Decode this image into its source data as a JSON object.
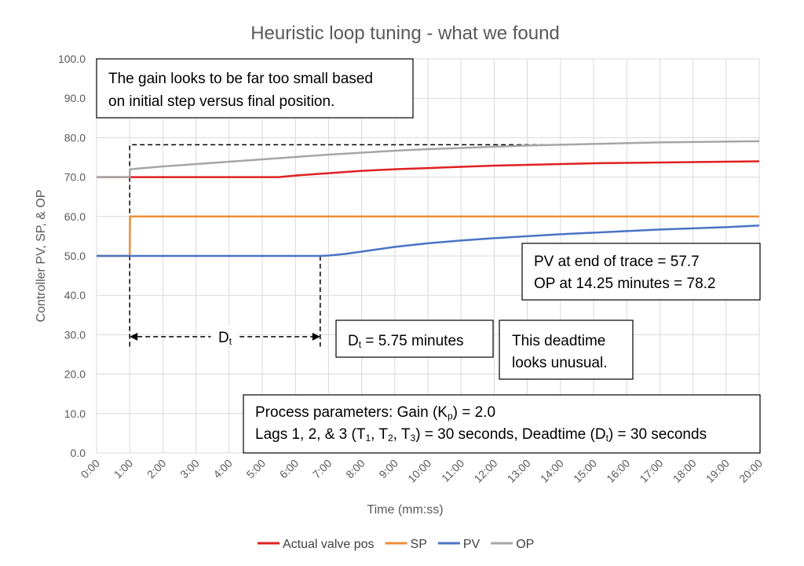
{
  "chart_data": {
    "type": "line",
    "title": "Heuristic loop tuning - what we found",
    "xlabel": "Time (mm:ss)",
    "ylabel": "Controller PV, SP, & OP",
    "xlim": [
      0,
      20
    ],
    "ylim": [
      0,
      100
    ],
    "x_ticks": [
      "0:00",
      "1:00",
      "2:00",
      "3:00",
      "4:00",
      "5:00",
      "6:00",
      "7:00",
      "8:00",
      "9:00",
      "10:00",
      "11:00",
      "12:00",
      "13:00",
      "14:00",
      "15:00",
      "16:00",
      "17:00",
      "18:00",
      "19:00",
      "20:00"
    ],
    "y_ticks": [
      "0.0",
      "10.0",
      "20.0",
      "30.0",
      "40.0",
      "50.0",
      "60.0",
      "70.0",
      "80.0",
      "90.0",
      "100.0"
    ],
    "grid": true,
    "legend_position": "bottom",
    "series": [
      {
        "name": "Actual valve pos",
        "color": "#e02020",
        "x": [
          0,
          1,
          1.01,
          2,
          3,
          4,
          5,
          5.5,
          6,
          7,
          8,
          9,
          10,
          11,
          12,
          13,
          14,
          15,
          16,
          17,
          18,
          19,
          20
        ],
        "y": [
          70,
          70,
          70,
          70,
          70,
          70,
          70,
          70,
          70.4,
          71,
          71.6,
          72,
          72.3,
          72.6,
          72.9,
          73.1,
          73.3,
          73.5,
          73.6,
          73.7,
          73.8,
          73.9,
          74
        ]
      },
      {
        "name": "SP",
        "color": "#ed8e3a",
        "x": [
          0,
          1,
          1.01,
          20
        ],
        "y": [
          50,
          50,
          60,
          60
        ]
      },
      {
        "name": "PV",
        "color": "#4a74c4",
        "x": [
          0,
          1,
          6.75,
          7,
          7.5,
          8,
          8.5,
          9,
          10,
          11,
          12,
          13,
          14,
          15,
          16,
          17,
          18,
          19,
          20
        ],
        "y": [
          50,
          50,
          50,
          50.1,
          50.5,
          51.1,
          51.7,
          52.3,
          53.2,
          53.9,
          54.5,
          55,
          55.5,
          55.9,
          56.3,
          56.7,
          57,
          57.3,
          57.7
        ]
      },
      {
        "name": "OP",
        "color": "#a6a6a6",
        "x": [
          0,
          1,
          1.01,
          2,
          3,
          4,
          5,
          6,
          7,
          8,
          9,
          10,
          11,
          12,
          13,
          14,
          15,
          16,
          17,
          18,
          19,
          20
        ],
        "y": [
          70,
          70,
          72,
          72.7,
          73.3,
          73.9,
          74.5,
          75.1,
          75.7,
          76.2,
          76.7,
          77.1,
          77.4,
          77.7,
          78,
          78.2,
          78.4,
          78.6,
          78.8,
          78.9,
          79,
          79.1
        ]
      }
    ],
    "annotations": {
      "gain_note": [
        "The gain looks to be far too small based",
        "on initial step versus final position."
      ],
      "pv_op_note": [
        "PV at end of trace = 57.7",
        "OP at 14.25 minutes = 78.2"
      ],
      "deadtime_value": {
        "main": "D",
        "sub": "t",
        "rest": " = 5.75 minutes"
      },
      "deadtime_note": [
        "This deadtime",
        "looks unusual."
      ],
      "dt_arrow_label": {
        "main": "D",
        "sub": "t"
      },
      "params_line1": [
        {
          "t": "Process parameters:  Gain (K"
        },
        {
          "t": "p",
          "sub": true
        },
        {
          "t": ") = 2.0"
        }
      ],
      "params_line2": [
        {
          "t": "Lags 1, 2, & 3 (T"
        },
        {
          "t": "1",
          "sub": true
        },
        {
          "t": ", T"
        },
        {
          "t": "2",
          "sub": true
        },
        {
          "t": ", T"
        },
        {
          "t": "3",
          "sub": true
        },
        {
          "t": ") = 30 seconds, Deadtime (D"
        },
        {
          "t": "t",
          "sub": true
        },
        {
          "t": ") = 30 seconds"
        }
      ]
    },
    "guide_lines": {
      "op_level": 78.2,
      "op_time": 14.25,
      "step_time": 1,
      "pv_response_time": 6.75,
      "arrow_level": 29.5,
      "guide_bottom": 27
    }
  }
}
